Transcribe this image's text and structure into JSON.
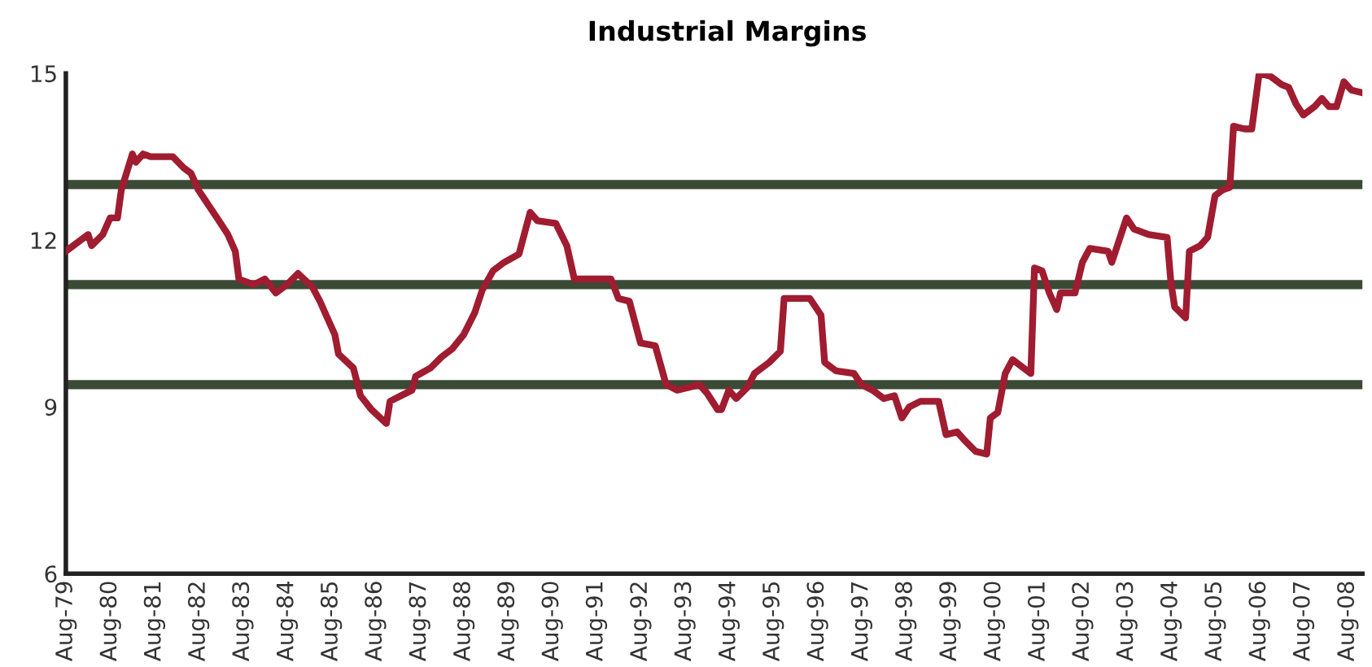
{
  "chart_data": {
    "type": "line",
    "title": "Industrial Margins",
    "x": [
      "1979-08",
      "1980-02",
      "1980-03",
      "1980-06",
      "1980-08",
      "1980-10",
      "1980-11",
      "1981-02",
      "1981-03",
      "1981-05",
      "1981-07",
      "1982-01",
      "1982-04",
      "1982-06",
      "1982-08",
      "1982-11",
      "1983-02",
      "1983-04",
      "1983-06",
      "1983-07",
      "1983-11",
      "1984-02",
      "1984-05",
      "1984-08",
      "1984-11",
      "1985-03",
      "1985-05",
      "1985-07",
      "1985-09",
      "1985-10",
      "1986-02",
      "1986-04",
      "1986-07",
      "1986-11",
      "1986-12",
      "1987-03",
      "1987-06",
      "1987-07",
      "1987-11",
      "1988-02",
      "1988-05",
      "1988-08",
      "1988-11",
      "1989-01",
      "1989-04",
      "1989-07",
      "1989-11",
      "1990-02",
      "1990-04",
      "1990-09",
      "1990-12",
      "1991-02",
      "1991-04",
      "1991-12",
      "1992-02",
      "1992-05",
      "1992-08",
      "1992-12",
      "1993-03",
      "1993-06",
      "1993-12",
      "1994-02",
      "1994-05",
      "1994-06",
      "1994-08",
      "1994-10",
      "1995-01",
      "1995-03",
      "1995-07",
      "1995-10",
      "1995-11",
      "1996-06",
      "1996-09",
      "1996-10",
      "1997-01",
      "1997-06",
      "1997-08",
      "1997-11",
      "1998-02",
      "1998-05",
      "1998-07",
      "1998-09",
      "1998-12",
      "1999-05",
      "1999-07",
      "1999-10",
      "1999-12",
      "2000-03",
      "2000-06",
      "2000-07",
      "2000-09",
      "2000-11",
      "2001-01",
      "2001-06",
      "2001-07",
      "2001-09",
      "2001-11",
      "2002-01",
      "2002-02",
      "2002-06",
      "2002-08",
      "2002-10",
      "2003-03",
      "2003-04",
      "2003-08",
      "2003-10",
      "2004-02",
      "2004-07",
      "2004-08",
      "2004-09",
      "2004-12",
      "2005-01",
      "2005-04",
      "2005-06",
      "2005-08",
      "2005-10",
      "2005-12",
      "2006-01",
      "2006-04",
      "2006-06",
      "2006-08",
      "2006-11",
      "2007-02",
      "2007-04",
      "2007-06",
      "2007-08",
      "2007-11",
      "2008-01",
      "2008-03",
      "2008-05",
      "2008-07",
      "2008-09",
      "2008-12"
    ],
    "series": [
      {
        "color": "#a01c30",
        "values": [
          11.8,
          12.1,
          11.9,
          12.1,
          12.4,
          12.4,
          12.9,
          13.55,
          13.4,
          13.55,
          13.5,
          13.5,
          13.3,
          13.2,
          12.9,
          12.6,
          12.3,
          12.1,
          11.8,
          11.3,
          11.2,
          11.3,
          11.05,
          11.2,
          11.4,
          11.15,
          10.9,
          10.6,
          10.3,
          9.95,
          9.7,
          9.2,
          8.95,
          8.7,
          9.1,
          9.2,
          9.3,
          9.55,
          9.7,
          9.9,
          10.05,
          10.3,
          10.7,
          11.1,
          11.45,
          11.6,
          11.75,
          12.5,
          12.35,
          12.3,
          11.9,
          11.3,
          11.3,
          11.3,
          10.95,
          10.9,
          10.15,
          10.1,
          9.4,
          9.3,
          9.4,
          9.25,
          8.95,
          8.95,
          9.3,
          9.15,
          9.35,
          9.6,
          9.8,
          10.0,
          10.95,
          10.95,
          10.65,
          9.8,
          9.65,
          9.6,
          9.4,
          9.3,
          9.15,
          9.2,
          8.8,
          9.0,
          9.1,
          9.1,
          8.5,
          8.55,
          8.4,
          8.2,
          8.15,
          8.8,
          8.9,
          9.6,
          9.85,
          9.6,
          11.5,
          11.45,
          11.05,
          10.75,
          11.05,
          11.05,
          11.6,
          11.85,
          11.8,
          11.6,
          12.4,
          12.2,
          12.1,
          12.05,
          11.25,
          10.8,
          10.6,
          11.8,
          11.9,
          12.05,
          12.8,
          12.9,
          12.95,
          14.05,
          14.0,
          14.0,
          15.0,
          14.95,
          14.8,
          14.75,
          14.45,
          14.25,
          14.4,
          14.55,
          14.4,
          14.4,
          14.85,
          14.7,
          14.65
        ]
      }
    ],
    "ylim": [
      6,
      15
    ],
    "yticks": [
      6,
      9,
      12,
      15
    ],
    "xlim": [
      "1979-08",
      "2008-12"
    ],
    "xticks": [
      {
        "value": "1979-08",
        "label": "Aug-79"
      },
      {
        "value": "1980-08",
        "label": "Aug-80"
      },
      {
        "value": "1981-08",
        "label": "Aug-81"
      },
      {
        "value": "1982-08",
        "label": "Aug-82"
      },
      {
        "value": "1983-08",
        "label": "Aug-83"
      },
      {
        "value": "1984-08",
        "label": "Aug-84"
      },
      {
        "value": "1985-08",
        "label": "Aug-85"
      },
      {
        "value": "1986-08",
        "label": "Aug-86"
      },
      {
        "value": "1987-08",
        "label": "Aug-87"
      },
      {
        "value": "1988-08",
        "label": "Aug-88"
      },
      {
        "value": "1989-08",
        "label": "Aug-89"
      },
      {
        "value": "1990-08",
        "label": "Aug-90"
      },
      {
        "value": "1991-08",
        "label": "Aug-91"
      },
      {
        "value": "1992-08",
        "label": "Aug-92"
      },
      {
        "value": "1993-08",
        "label": "Aug-93"
      },
      {
        "value": "1994-08",
        "label": "Aug-94"
      },
      {
        "value": "1995-08",
        "label": "Aug-95"
      },
      {
        "value": "1996-08",
        "label": "Aug-96"
      },
      {
        "value": "1997-08",
        "label": "Aug-97"
      },
      {
        "value": "1998-08",
        "label": "Aug-98"
      },
      {
        "value": "1999-08",
        "label": "Aug-99"
      },
      {
        "value": "2000-08",
        "label": "Aug-00"
      },
      {
        "value": "2001-08",
        "label": "Aug-01"
      },
      {
        "value": "2002-08",
        "label": "Aug-02"
      },
      {
        "value": "2003-08",
        "label": "Aug-03"
      },
      {
        "value": "2004-08",
        "label": "Aug-04"
      },
      {
        "value": "2005-08",
        "label": "Aug-05"
      },
      {
        "value": "2006-08",
        "label": "Aug-06"
      },
      {
        "value": "2007-08",
        "label": "Aug-07"
      },
      {
        "value": "2008-08",
        "label": "Aug-08"
      }
    ],
    "ref_lines": [
      {
        "axis": "y",
        "value": 13.0,
        "color": "#3a4a35"
      },
      {
        "axis": "y",
        "value": 11.2,
        "color": "#3a4a35"
      },
      {
        "axis": "y",
        "value": 9.4,
        "color": "#3a4a35"
      }
    ],
    "grid": false,
    "marker": "none",
    "line_style": "solid"
  }
}
